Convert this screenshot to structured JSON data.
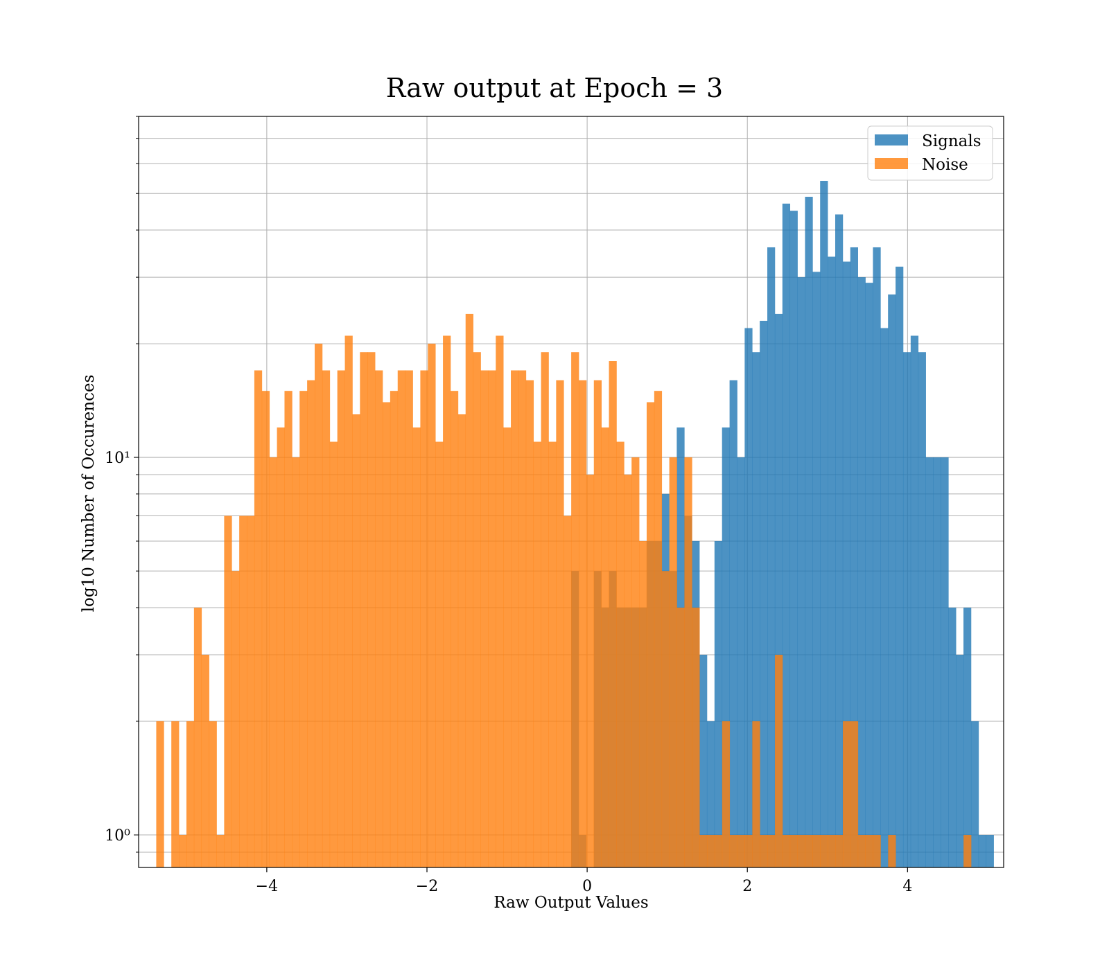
{
  "chart_data": {
    "type": "bar",
    "title": "Raw output at Epoch = 3",
    "xlabel": "Raw Output Values",
    "ylabel": "log10 Number of Occurences",
    "x_scale": "linear",
    "y_scale": "log",
    "xlim": [
      -5.6,
      5.2
    ],
    "ylim": [
      0.82,
      80
    ],
    "xticks": [
      -4,
      -2,
      0,
      2,
      4
    ],
    "xtick_labels": [
      "−4",
      "−2",
      "0",
      "2",
      "4"
    ],
    "yticks": [
      1,
      10
    ],
    "ytick_labels": [
      "10⁰",
      "10¹"
    ],
    "grid": true,
    "legend_position": "upper right",
    "series": [
      {
        "name": "Signals",
        "color": "#1f77b4",
        "alpha": 0.8,
        "bin_start": -0.2,
        "bin_width": 0.0942,
        "values": [
          5,
          1,
          0,
          5,
          4,
          5,
          4,
          4,
          4,
          4,
          6,
          6,
          8,
          5,
          12,
          7,
          6,
          3,
          2,
          6,
          12,
          16,
          10,
          22,
          19,
          23,
          36,
          24,
          47,
          45,
          30,
          49,
          31,
          54,
          34,
          44,
          33,
          36,
          30,
          29,
          36,
          22,
          27,
          32,
          19,
          21,
          19,
          10,
          10,
          10,
          4,
          3,
          4,
          2,
          1,
          1
        ]
      },
      {
        "name": "Noise",
        "color": "#ff7f0e",
        "alpha": 0.8,
        "bin_start": -5.38,
        "bin_width": 0.0942,
        "values": [
          2,
          0,
          2,
          1,
          2,
          4,
          3,
          2,
          1,
          7,
          5,
          7,
          7,
          17,
          15,
          10,
          12,
          15,
          10,
          15,
          16,
          20,
          17,
          11,
          17,
          21,
          13,
          19,
          19,
          17,
          14,
          15,
          17,
          17,
          12,
          17,
          20,
          11,
          21,
          15,
          13,
          24,
          19,
          17,
          17,
          21,
          12,
          17,
          17,
          16,
          11,
          19,
          11,
          16,
          7,
          19,
          16,
          9,
          16,
          12,
          18,
          11,
          9,
          10,
          6,
          14,
          15,
          5,
          10,
          4,
          10,
          4,
          1,
          1,
          1,
          2,
          1,
          1,
          1,
          2,
          1,
          1,
          3,
          1,
          1,
          1,
          1,
          1,
          1,
          1,
          1,
          2,
          2,
          1,
          1,
          1,
          0,
          1,
          0,
          0,
          0,
          0,
          0,
          0,
          0,
          0,
          0,
          1,
          0
        ]
      }
    ]
  }
}
